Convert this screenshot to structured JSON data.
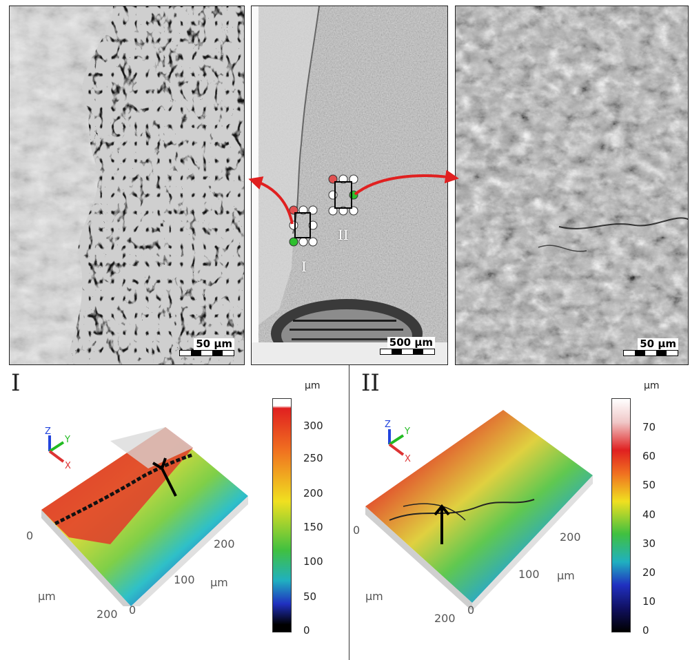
{
  "top": {
    "left_panel": {
      "scale_label": "50 µm"
    },
    "center_panel": {
      "scale_label": "500 µm",
      "region_labels": [
        "I",
        "II"
      ]
    },
    "right_panel": {
      "scale_label": "50 µm"
    }
  },
  "bottom_left": {
    "title": "I",
    "colorbar_unit": "µm",
    "colorbar_ticks": [
      "300",
      "250",
      "200",
      "150",
      "100",
      "50",
      "0"
    ],
    "axis_labels": {
      "x_unit": "µm",
      "y_unit": "µm"
    },
    "axis_ticks": {
      "y_zero": "0",
      "x_zero": "0",
      "x_100": "100",
      "x_200": "200",
      "y_200": "200"
    }
  },
  "bottom_right": {
    "title": "II",
    "colorbar_unit": "µm",
    "colorbar_ticks": [
      "70",
      "60",
      "50",
      "40",
      "30",
      "20",
      "10",
      "0"
    ],
    "axis_labels": {
      "x_unit": "µm",
      "y_unit": "µm"
    },
    "axis_ticks": {
      "y_zero": "0",
      "x_zero": "0",
      "x_100": "100",
      "x_200": "200",
      "y_200": "200"
    }
  },
  "colors": {
    "arrow": "#e02020",
    "marker_red": "#e05050",
    "marker_green": "#2ec02e"
  }
}
